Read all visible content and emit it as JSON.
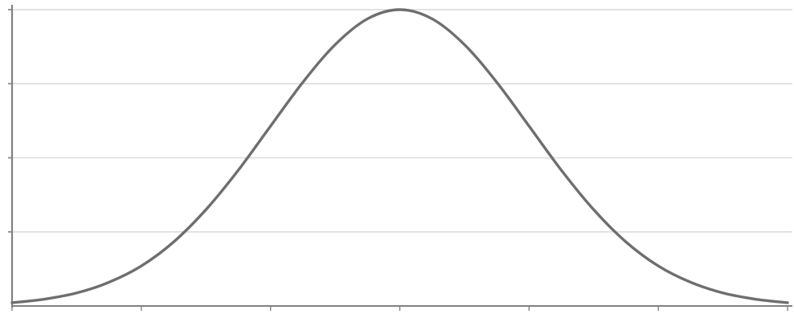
{
  "chart_data": {
    "type": "line",
    "title": "",
    "xlabel": "",
    "ylabel": "",
    "xlim": [
      -3,
      3
    ],
    "ylim": [
      0,
      1
    ],
    "x_tick_count": 7,
    "y_gridline_count": 4,
    "grid": true,
    "legend": "none",
    "series": [
      {
        "color": "#6e6e6e",
        "x": [
          -3,
          -2.75,
          -2.5,
          -2.25,
          -2,
          -1.75,
          -1.5,
          -1.25,
          -1,
          -0.75,
          -0.5,
          -0.25,
          0,
          0.25,
          0.5,
          0.75,
          1,
          1.25,
          1.5,
          1.75,
          2,
          2.25,
          2.5,
          2.75,
          3
        ],
        "y": [
          0.011,
          0.023,
          0.044,
          0.08,
          0.135,
          0.216,
          0.325,
          0.458,
          0.607,
          0.755,
          0.882,
          0.969,
          1.0,
          0.969,
          0.882,
          0.755,
          0.607,
          0.458,
          0.325,
          0.216,
          0.135,
          0.08,
          0.044,
          0.023,
          0.011
        ]
      }
    ]
  },
  "colors": {
    "grid": "#d9d9d9",
    "axis": "#808080",
    "line": "#6e6e6e"
  }
}
